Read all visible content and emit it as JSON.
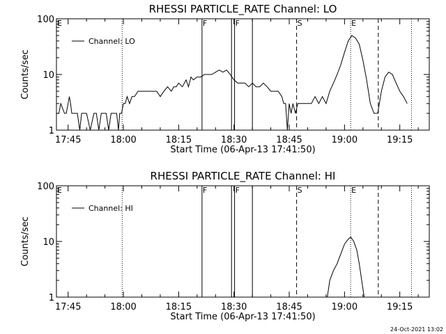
{
  "timestamp": "24-Oct-2021 13:02",
  "chart_data": [
    {
      "type": "line",
      "title": "RHESSI PARTICLE_RATE Channel: LO",
      "xlabel": "Start Time (06-Apr-13 17:41:50)",
      "ylabel": "Counts/sec",
      "xlim": [
        "17:41:50",
        "19:23:00"
      ],
      "ylim": [
        1,
        100
      ],
      "yscale": "log",
      "x_ticks": [
        "17:45",
        "18:00",
        "18:15",
        "18:30",
        "18:45",
        "19:00",
        "19:15"
      ],
      "y_ticks": [
        "1",
        "10",
        "100"
      ],
      "legend": "top-left",
      "series": [
        {
          "name": "Channel: LO",
          "x": [
            "17:41:50",
            "17:42:30",
            "17:43:00",
            "17:44:00",
            "17:44:30",
            "17:45:00",
            "17:45:20",
            "17:45:40",
            "17:46:00",
            "17:46:20",
            "17:47:00",
            "17:47:30",
            "17:48:10",
            "17:48:40",
            "17:49:20",
            "17:50:00",
            "17:51:00",
            "17:52:00",
            "17:52:40",
            "17:53:20",
            "17:54:00",
            "17:54:40",
            "17:55:20",
            "17:56:00",
            "17:56:40",
            "17:57:20",
            "17:58:10",
            "17:58:40",
            "17:59:00",
            "17:59:30",
            "18:00:00",
            "18:00:30",
            "18:01:00",
            "18:01:40",
            "18:02:20",
            "18:03:00",
            "18:04:00",
            "18:05:00",
            "18:06:00",
            "18:07:00",
            "18:08:00",
            "18:09:00",
            "18:10:00",
            "18:11:00",
            "18:12:00",
            "18:13:00",
            "18:13:40",
            "18:14:20",
            "18:15:00",
            "18:16:00",
            "18:17:00",
            "18:17:40",
            "18:18:20",
            "18:19:00",
            "18:20:00",
            "18:21:00",
            "18:22:00",
            "18:23:00",
            "18:24:00",
            "18:25:00",
            "18:26:00",
            "18:27:00",
            "18:28:00",
            "18:29:00",
            "18:30:00",
            "18:31:00",
            "18:32:00",
            "18:33:00",
            "18:34:00",
            "18:35:00",
            "18:36:00",
            "18:37:00",
            "18:38:00",
            "18:39:00",
            "18:40:00",
            "18:41:00",
            "18:42:00",
            "18:43:00",
            "18:43:30",
            "18:44:00",
            "18:44:30",
            "18:45:00",
            "18:45:30",
            "18:46:00",
            "18:46:40",
            "18:47:20",
            "18:48:00",
            "18:49:00",
            "18:50:00",
            "18:51:00",
            "18:52:00",
            "18:53:00",
            "18:54:00",
            "18:55:00",
            "18:56:00",
            "18:57:00",
            "18:58:00",
            "18:59:00",
            "19:00:00",
            "19:01:00",
            "19:02:00",
            "19:03:00",
            "19:04:00",
            "19:05:00",
            "19:06:00",
            "19:07:00",
            "19:08:00",
            "19:09:00",
            "19:10:00",
            "19:11:00",
            "19:12:00",
            "19:13:00",
            "19:14:00",
            "19:15:00",
            "19:16:00",
            "19:17:00"
          ],
          "values": [
            2,
            2,
            3,
            2,
            2,
            3,
            4,
            3,
            2,
            2,
            2,
            2,
            1,
            2,
            2,
            2,
            1,
            2,
            2,
            1,
            2,
            2,
            2,
            1,
            2,
            2,
            2,
            1,
            2,
            2,
            3,
            3,
            4,
            3,
            4,
            4,
            5,
            5,
            5,
            5,
            5,
            5,
            4,
            5,
            6,
            5,
            6,
            6,
            7,
            6,
            8,
            6,
            9,
            8,
            9,
            9,
            10,
            10,
            10,
            11,
            12,
            11,
            12,
            10,
            8,
            7,
            7,
            7,
            6,
            7,
            6,
            6,
            7,
            6,
            5,
            5,
            5,
            4,
            3,
            3,
            1,
            3,
            2,
            3,
            2,
            3,
            3,
            3,
            3,
            3,
            4,
            3,
            4,
            3,
            5,
            7,
            10,
            15,
            25,
            40,
            50,
            45,
            35,
            18,
            8,
            3,
            2,
            2,
            5,
            9,
            11,
            10,
            7,
            5,
            4,
            3
          ]
        }
      ],
      "markers": [
        {
          "label": "E",
          "time": "17:41:50",
          "style": "none"
        },
        {
          "label": "",
          "time": "17:59:40",
          "style": "dotted"
        },
        {
          "label": "F",
          "time": "18:21:20",
          "style": "solid"
        },
        {
          "label": "",
          "time": "18:29:20",
          "style": "solid"
        },
        {
          "label": "F",
          "time": "18:30:10",
          "style": "solid"
        },
        {
          "label": "",
          "time": "18:35:00",
          "style": "solid"
        },
        {
          "label": "S",
          "time": "18:47:00",
          "style": "dashed"
        },
        {
          "label": "E",
          "time": "19:01:40",
          "style": "dotted"
        },
        {
          "label": "",
          "time": "19:09:10",
          "style": "dashed"
        },
        {
          "label": "",
          "time": "19:18:10",
          "style": "dotted"
        }
      ]
    },
    {
      "type": "line",
      "title": "RHESSI PARTICLE_RATE Channel: HI",
      "xlabel": "Start Time (06-Apr-13 17:41:50)",
      "ylabel": "Counts/sec",
      "xlim": [
        "17:41:50",
        "19:23:00"
      ],
      "ylim": [
        1,
        100
      ],
      "yscale": "log",
      "x_ticks": [
        "17:45",
        "18:00",
        "18:15",
        "18:30",
        "18:45",
        "19:00",
        "19:15"
      ],
      "y_ticks": [
        "1",
        "10",
        "100"
      ],
      "legend": "top-left",
      "series": [
        {
          "name": "Channel: HI",
          "x": [
            "18:55:20",
            "18:56:00",
            "18:57:00",
            "18:58:00",
            "18:59:00",
            "19:00:00",
            "19:01:00",
            "19:01:40",
            "19:02:30",
            "19:03:20",
            "19:04:00",
            "19:04:40",
            "19:05:20"
          ],
          "values": [
            1,
            2,
            3,
            4,
            6,
            9,
            11,
            12,
            10,
            7,
            4,
            2,
            1
          ]
        }
      ],
      "markers": [
        {
          "label": "E",
          "time": "17:41:50",
          "style": "none"
        },
        {
          "label": "",
          "time": "17:59:40",
          "style": "dotted"
        },
        {
          "label": "F",
          "time": "18:21:20",
          "style": "solid"
        },
        {
          "label": "",
          "time": "18:29:20",
          "style": "solid"
        },
        {
          "label": "F",
          "time": "18:30:10",
          "style": "solid"
        },
        {
          "label": "",
          "time": "18:35:00",
          "style": "solid"
        },
        {
          "label": "S",
          "time": "18:47:00",
          "style": "dashed"
        },
        {
          "label": "E",
          "time": "19:01:40",
          "style": "dotted"
        },
        {
          "label": "",
          "time": "19:09:10",
          "style": "dashed"
        },
        {
          "label": "",
          "time": "19:18:10",
          "style": "dotted"
        }
      ]
    }
  ]
}
